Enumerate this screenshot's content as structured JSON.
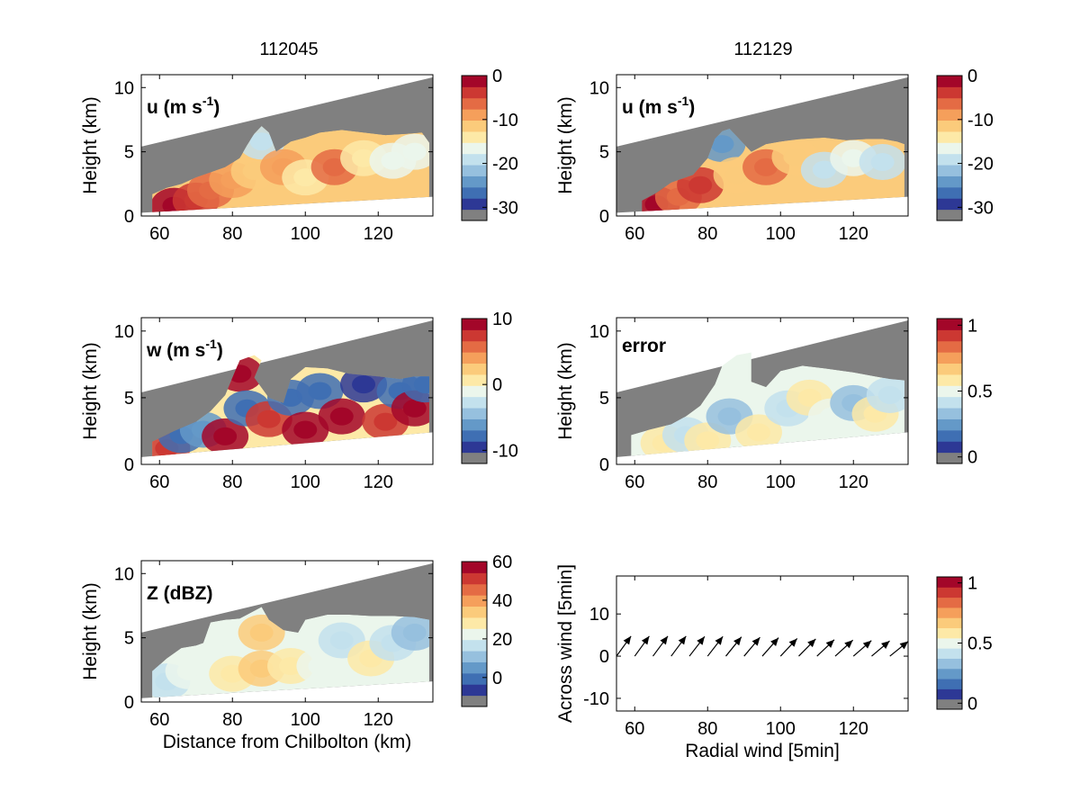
{
  "columns": [
    {
      "title": "112045"
    },
    {
      "title": "112129"
    }
  ],
  "colors": {
    "cmap": [
      "#2d3895",
      "#3f6fb3",
      "#6499c8",
      "#96c0de",
      "#c3e1ed",
      "#ebf6ec",
      "#fde9a7",
      "#fbcb7b",
      "#f59f5b",
      "#e46b44",
      "#cc3832",
      "#a30629"
    ],
    "nodata": "#808080",
    "below_beam": "#ffffff"
  },
  "chart_data": [
    {
      "type": "heatmap",
      "panel": "u-112045",
      "label": "u (m s-1)",
      "ylabel": "Height (km)",
      "xlabel": "",
      "xlim": [
        55,
        135
      ],
      "ylim": [
        0,
        11
      ],
      "xticks": [
        "60",
        "80",
        "100",
        "120"
      ],
      "yticks": [
        "0",
        "5",
        "10"
      ],
      "beam_top": [
        [
          55,
          5.4
        ],
        [
          135,
          10.8
        ]
      ],
      "beam_bottom": [
        [
          55,
          0.25
        ],
        [
          135,
          1.5
        ]
      ],
      "colorbar": {
        "min": -33,
        "max": 0,
        "ticks": [
          "0",
          "-10",
          "-20",
          "-30"
        ],
        "tick_values": [
          0,
          -10,
          -20,
          -30
        ]
      },
      "echo_top": [
        [
          58,
          1.7
        ],
        [
          62,
          2.2
        ],
        [
          66,
          2.5
        ],
        [
          70,
          3.0
        ],
        [
          74,
          3.4
        ],
        [
          78,
          3.8
        ],
        [
          82,
          4.5
        ],
        [
          84,
          5.5
        ],
        [
          86,
          6.4
        ],
        [
          88,
          7.0
        ],
        [
          90,
          6.5
        ],
        [
          92,
          5.0
        ],
        [
          96,
          5.8
        ],
        [
          100,
          6.1
        ],
        [
          104,
          6.5
        ],
        [
          110,
          6.7
        ],
        [
          116,
          6.5
        ],
        [
          122,
          6.3
        ],
        [
          128,
          6.4
        ],
        [
          132,
          6.5
        ],
        [
          134,
          5.7
        ]
      ],
      "data": [
        {
          "x": 64,
          "y": 0.8,
          "v": -1
        },
        {
          "x": 70,
          "y": 1.2,
          "v": -5
        },
        {
          "x": 74,
          "y": 2.0,
          "v": -8
        },
        {
          "x": 80,
          "y": 2.8,
          "v": -9
        },
        {
          "x": 86,
          "y": 3.5,
          "v": -12
        },
        {
          "x": 88,
          "y": 5.8,
          "v": -20
        },
        {
          "x": 94,
          "y": 3.8,
          "v": -10
        },
        {
          "x": 100,
          "y": 3.0,
          "v": -15
        },
        {
          "x": 108,
          "y": 3.8,
          "v": -7
        },
        {
          "x": 116,
          "y": 4.5,
          "v": -15
        },
        {
          "x": 124,
          "y": 4.3,
          "v": -19
        },
        {
          "x": 130,
          "y": 5.0,
          "v": -17
        }
      ]
    },
    {
      "type": "heatmap",
      "panel": "u-112129",
      "label": "u (m s-1)",
      "ylabel": "Height (km)",
      "xlabel": "",
      "xlim": [
        55,
        135
      ],
      "ylim": [
        0,
        11
      ],
      "xticks": [
        "60",
        "80",
        "100",
        "120"
      ],
      "yticks": [
        "0",
        "5",
        "10"
      ],
      "beam_top": [
        [
          55,
          5.4
        ],
        [
          135,
          10.8
        ]
      ],
      "beam_bottom": [
        [
          55,
          0.25
        ],
        [
          135,
          1.5
        ]
      ],
      "colorbar": {
        "min": -33,
        "max": 0,
        "ticks": [
          "0",
          "-10",
          "-20",
          "-30"
        ],
        "tick_values": [
          0,
          -10,
          -20,
          -30
        ]
      },
      "echo_top": [
        [
          62,
          1.2
        ],
        [
          66,
          1.8
        ],
        [
          70,
          2.6
        ],
        [
          76,
          3.2
        ],
        [
          80,
          4.5
        ],
        [
          82,
          6.0
        ],
        [
          84,
          6.6
        ],
        [
          86,
          6.8
        ],
        [
          88,
          6.2
        ],
        [
          90,
          5.6
        ],
        [
          92,
          5.0
        ],
        [
          96,
          5.6
        ],
        [
          100,
          5.8
        ],
        [
          106,
          6.0
        ],
        [
          112,
          6.1
        ],
        [
          118,
          5.9
        ],
        [
          124,
          6.0
        ],
        [
          128,
          6.0
        ],
        [
          132,
          5.8
        ],
        [
          134,
          5.6
        ]
      ],
      "data": [
        {
          "x": 66,
          "y": 0.9,
          "v": -2
        },
        {
          "x": 72,
          "y": 1.5,
          "v": -6
        },
        {
          "x": 78,
          "y": 2.4,
          "v": -5
        },
        {
          "x": 84,
          "y": 5.6,
          "v": -27
        },
        {
          "x": 88,
          "y": 3.2,
          "v": -12
        },
        {
          "x": 96,
          "y": 3.8,
          "v": -8
        },
        {
          "x": 104,
          "y": 4.6,
          "v": -12
        },
        {
          "x": 112,
          "y": 3.6,
          "v": -20
        },
        {
          "x": 120,
          "y": 4.5,
          "v": -17
        },
        {
          "x": 128,
          "y": 4.2,
          "v": -21
        }
      ]
    },
    {
      "type": "heatmap",
      "panel": "w-112045",
      "label": "w (m s-1)",
      "ylabel": "Height (km)",
      "xlabel": "",
      "xlim": [
        55,
        135
      ],
      "ylim": [
        0,
        11
      ],
      "xticks": [
        "60",
        "80",
        "100",
        "120"
      ],
      "yticks": [
        "0",
        "5",
        "10"
      ],
      "beam_top": [
        [
          55,
          5.4
        ],
        [
          135,
          10.8
        ]
      ],
      "beam_bottom": [
        [
          55,
          0.55
        ],
        [
          135,
          2.4
        ]
      ],
      "colorbar": {
        "min": -12,
        "max": 10,
        "ticks": [
          "10",
          "0",
          "-10"
        ],
        "tick_values": [
          10,
          0,
          -10
        ]
      },
      "echo_top": [
        [
          58,
          1.7
        ],
        [
          64,
          2.5
        ],
        [
          70,
          3.2
        ],
        [
          74,
          4.0
        ],
        [
          78,
          5.2
        ],
        [
          80,
          6.5
        ],
        [
          82,
          7.8
        ],
        [
          86,
          8.2
        ],
        [
          88,
          7.8
        ],
        [
          86,
          6.5
        ],
        [
          90,
          5.0
        ],
        [
          94,
          4.6
        ],
        [
          96,
          6.4
        ],
        [
          100,
          7.3
        ],
        [
          106,
          7.2
        ],
        [
          112,
          6.8
        ],
        [
          120,
          6.6
        ],
        [
          126,
          6.4
        ],
        [
          130,
          6.6
        ],
        [
          134,
          6.6
        ]
      ],
      "data": [
        {
          "x": 62,
          "y": 1.2,
          "v": 8
        },
        {
          "x": 66,
          "y": 2.2,
          "v": -10
        },
        {
          "x": 72,
          "y": 2.6,
          "v": -8
        },
        {
          "x": 78,
          "y": 2.1,
          "v": 9
        },
        {
          "x": 82,
          "y": 6.8,
          "v": 10
        },
        {
          "x": 84,
          "y": 4.2,
          "v": -10
        },
        {
          "x": 90,
          "y": 3.4,
          "v": 8
        },
        {
          "x": 96,
          "y": 5.0,
          "v": -10
        },
        {
          "x": 100,
          "y": 2.6,
          "v": 9
        },
        {
          "x": 104,
          "y": 5.5,
          "v": -9
        },
        {
          "x": 110,
          "y": 3.6,
          "v": 9
        },
        {
          "x": 116,
          "y": 6.0,
          "v": -11
        },
        {
          "x": 122,
          "y": 3.2,
          "v": 8
        },
        {
          "x": 126,
          "y": 5.5,
          "v": -10
        },
        {
          "x": 130,
          "y": 4.2,
          "v": 9
        },
        {
          "x": 133,
          "y": 6.0,
          "v": -9
        }
      ]
    },
    {
      "type": "heatmap",
      "panel": "error-112129",
      "label": "error",
      "ylabel": "Height (km)",
      "xlabel": "",
      "xlim": [
        55,
        135
      ],
      "ylim": [
        0,
        11
      ],
      "xticks": [
        "60",
        "80",
        "100",
        "120"
      ],
      "yticks": [
        "0",
        "5",
        "10"
      ],
      "beam_top": [
        [
          55,
          5.4
        ],
        [
          135,
          10.8
        ]
      ],
      "beam_bottom": [
        [
          55,
          0.55
        ],
        [
          135,
          2.4
        ]
      ],
      "colorbar": {
        "min": -0.05,
        "max": 1.05,
        "ticks": [
          "1",
          "0.5",
          "0"
        ],
        "tick_values": [
          1,
          0.5,
          0
        ]
      },
      "echo_top": [
        [
          59,
          2.2
        ],
        [
          64,
          2.6
        ],
        [
          70,
          3.0
        ],
        [
          74,
          3.6
        ],
        [
          78,
          4.4
        ],
        [
          82,
          6.0
        ],
        [
          84,
          7.4
        ],
        [
          88,
          8.2
        ],
        [
          92,
          8.4
        ],
        [
          92,
          6.2
        ],
        [
          96,
          5.8
        ],
        [
          100,
          7.0
        ],
        [
          106,
          7.4
        ],
        [
          112,
          7.2
        ],
        [
          120,
          6.9
        ],
        [
          126,
          6.6
        ],
        [
          130,
          6.4
        ],
        [
          134,
          6.3
        ]
      ],
      "data": [
        {
          "x": 68,
          "y": 1.6,
          "v": 0.55
        },
        {
          "x": 74,
          "y": 2.2,
          "v": 0.35
        },
        {
          "x": 80,
          "y": 1.8,
          "v": 0.5
        },
        {
          "x": 86,
          "y": 3.6,
          "v": 0.3
        },
        {
          "x": 94,
          "y": 2.4,
          "v": 0.5
        },
        {
          "x": 102,
          "y": 4.2,
          "v": 0.4
        },
        {
          "x": 108,
          "y": 5.0,
          "v": 0.55
        },
        {
          "x": 114,
          "y": 3.6,
          "v": 0.45
        },
        {
          "x": 120,
          "y": 4.6,
          "v": 0.3
        },
        {
          "x": 126,
          "y": 3.8,
          "v": 0.55
        },
        {
          "x": 130,
          "y": 5.2,
          "v": 0.35
        }
      ]
    },
    {
      "type": "heatmap",
      "panel": "Z-112045",
      "label": "Z (dBZ)",
      "ylabel": "Height (km)",
      "xlabel": "Distance from Chilbolton (km)",
      "xlim": [
        55,
        135
      ],
      "ylim": [
        0,
        11
      ],
      "xticks": [
        "60",
        "80",
        "100",
        "120"
      ],
      "yticks": [
        "0",
        "5",
        "10"
      ],
      "beam_top": [
        [
          55,
          5.4
        ],
        [
          135,
          10.8
        ]
      ],
      "beam_bottom": [
        [
          55,
          0.3
        ],
        [
          135,
          1.6
        ]
      ],
      "colorbar": {
        "min": -15,
        "max": 60,
        "ticks": [
          "60",
          "40",
          "20",
          "0"
        ],
        "tick_values": [
          60,
          40,
          20,
          0
        ]
      },
      "echo_top": [
        [
          58,
          2.4
        ],
        [
          62,
          3.4
        ],
        [
          66,
          4.2
        ],
        [
          70,
          4.4
        ],
        [
          72,
          4.6
        ],
        [
          74,
          6.2
        ],
        [
          78,
          6.4
        ],
        [
          82,
          6.5
        ],
        [
          84,
          6.8
        ],
        [
          88,
          7.4
        ],
        [
          90,
          6.4
        ],
        [
          94,
          5.6
        ],
        [
          98,
          5.4
        ],
        [
          100,
          6.4
        ],
        [
          106,
          6.8
        ],
        [
          112,
          6.8
        ],
        [
          118,
          6.7
        ],
        [
          124,
          6.7
        ],
        [
          130,
          6.6
        ],
        [
          134,
          6.4
        ]
      ],
      "data": [
        {
          "x": 62,
          "y": 1.6,
          "v": 12
        },
        {
          "x": 68,
          "y": 2.4,
          "v": 20
        },
        {
          "x": 74,
          "y": 3.2,
          "v": 18
        },
        {
          "x": 80,
          "y": 2.2,
          "v": 24
        },
        {
          "x": 88,
          "y": 2.6,
          "v": 34
        },
        {
          "x": 88,
          "y": 5.4,
          "v": 32
        },
        {
          "x": 96,
          "y": 2.8,
          "v": 28
        },
        {
          "x": 104,
          "y": 2.8,
          "v": 19
        },
        {
          "x": 110,
          "y": 4.8,
          "v": 13
        },
        {
          "x": 118,
          "y": 3.4,
          "v": 24
        },
        {
          "x": 124,
          "y": 4.6,
          "v": 12
        },
        {
          "x": 130,
          "y": 5.4,
          "v": 6
        }
      ]
    },
    {
      "type": "quiver",
      "panel": "wind-arrows",
      "xlabel": "Radial wind [5min]",
      "ylabel": "Across wind [5min]",
      "xlim": [
        55,
        135
      ],
      "ylim": [
        -13,
        19
      ],
      "xticks": [
        "60",
        "80",
        "100",
        "120"
      ],
      "yticks": [
        "10",
        "0",
        "-10"
      ],
      "colorbar": {
        "min": -0.05,
        "max": 1.05,
        "ticks": [
          "1",
          "0.5",
          "0"
        ],
        "tick_values": [
          1,
          0.5,
          0
        ]
      },
      "arrows": [
        {
          "x": 55,
          "y": 0,
          "u": 4.2,
          "v": 5.0
        },
        {
          "x": 60,
          "y": 0,
          "u": 4.2,
          "v": 5.0
        },
        {
          "x": 65,
          "y": 0,
          "u": 4.3,
          "v": 5.0
        },
        {
          "x": 70,
          "y": 0,
          "u": 4.3,
          "v": 5.0
        },
        {
          "x": 75,
          "y": 0,
          "u": 4.4,
          "v": 4.9
        },
        {
          "x": 80,
          "y": 0,
          "u": 4.4,
          "v": 4.9
        },
        {
          "x": 85,
          "y": 0,
          "u": 4.5,
          "v": 4.8
        },
        {
          "x": 90,
          "y": 0,
          "u": 4.6,
          "v": 4.7
        },
        {
          "x": 95,
          "y": 0,
          "u": 4.7,
          "v": 4.6
        },
        {
          "x": 100,
          "y": 0,
          "u": 4.8,
          "v": 4.4
        },
        {
          "x": 105,
          "y": 0,
          "u": 4.9,
          "v": 4.3
        },
        {
          "x": 110,
          "y": 0,
          "u": 5.0,
          "v": 4.1
        },
        {
          "x": 115,
          "y": 0,
          "u": 5.1,
          "v": 4.0
        },
        {
          "x": 120,
          "y": 0,
          "u": 5.2,
          "v": 3.9
        },
        {
          "x": 125,
          "y": 0,
          "u": 5.2,
          "v": 3.8
        },
        {
          "x": 130,
          "y": 0,
          "u": 5.3,
          "v": 3.7
        },
        {
          "x": 135,
          "y": 0,
          "u": 5.3,
          "v": 3.7
        }
      ]
    }
  ]
}
